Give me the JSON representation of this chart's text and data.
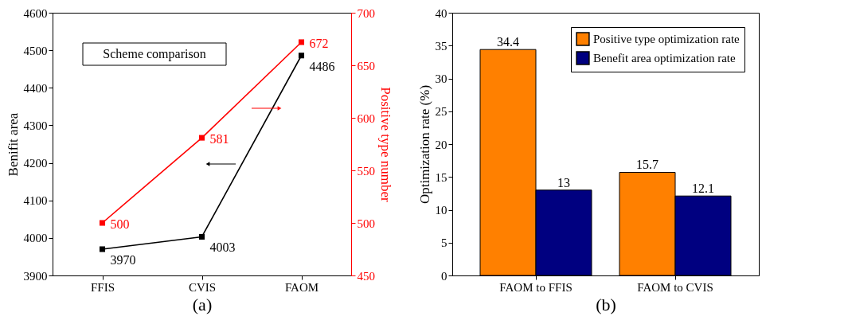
{
  "chart_data": [
    {
      "type": "line",
      "xlabel": "(a)",
      "ylabel": "Benifit area",
      "y2label": "Positive type number",
      "categories": [
        "FFIS",
        "CVIS",
        "FAOM"
      ],
      "series": [
        {
          "color": "#000000",
          "values": [
            3970,
            4003,
            4486
          ]
        },
        {
          "color": "#ff0000",
          "axis": "y2",
          "values": [
            500,
            581,
            672
          ]
        }
      ],
      "ylim": [
        3900,
        4600
      ],
      "yticks": [
        3900,
        4000,
        4100,
        4200,
        4300,
        4400,
        4500,
        4600
      ],
      "y2lim": [
        450,
        700
      ],
      "y2ticks": [
        450,
        500,
        550,
        600,
        650,
        700
      ],
      "marker": "square",
      "data_labels": true,
      "annotations": [
        "Scheme comparison"
      ]
    },
    {
      "type": "bar",
      "xlabel": "(b)",
      "ylabel": "Optimization rate (%)",
      "categories": [
        "FAOM to FFIS",
        "FAOM to CVIS"
      ],
      "series": [
        {
          "name": "Positive type optimization rate",
          "color": "#ff8000",
          "values": [
            34.4,
            15.7
          ]
        },
        {
          "name": "Benefit area optimization rate",
          "color": "#000080",
          "values": [
            13,
            12.1
          ]
        }
      ],
      "ylim": [
        0,
        40
      ],
      "yticks": [
        0,
        5,
        10,
        15,
        20,
        25,
        30,
        35,
        40
      ],
      "legend": "top right",
      "data_labels": true
    }
  ]
}
